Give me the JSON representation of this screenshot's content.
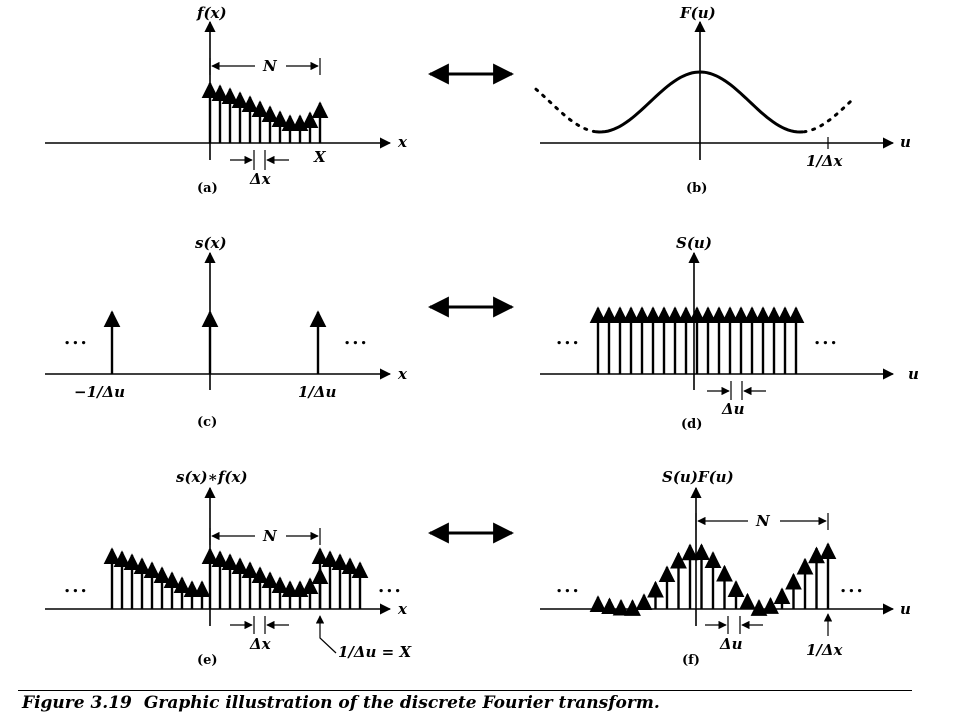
{
  "panels": {
    "a": {
      "tag": "(a)",
      "title": "f(x)",
      "axis": "x",
      "dim_top": "N",
      "dim_bottom": "Δx",
      "end_label": "X"
    },
    "b": {
      "tag": "(b)",
      "title": "F(u)",
      "axis": "u",
      "tick": "1/Δx"
    },
    "c": {
      "tag": "(c)",
      "title": "s(x)",
      "axis": "x",
      "tick_left": "−1/Δu",
      "tick_right": "1/Δu",
      "ellipsis": "..."
    },
    "d": {
      "tag": "(d)",
      "title": "S(u)",
      "axis": "u",
      "dim_bottom": "Δu",
      "ellipsis": "..."
    },
    "e": {
      "tag": "(e)",
      "title": "s(x)∗f(x)",
      "axis": "x",
      "dim_top": "N",
      "dim_bottom": "Δx",
      "callout": "1/Δu = X",
      "ellipsis": "..."
    },
    "f": {
      "tag": "(f)",
      "title": "S(u)F(u)",
      "axis": "u",
      "dim_top": "N",
      "dim_bottom": "Δu",
      "tick": "1/Δx",
      "ellipsis": "..."
    }
  },
  "caption": {
    "number": "Figure 3.19",
    "text": "Graphic illustration of the discrete Fourier transform."
  }
}
